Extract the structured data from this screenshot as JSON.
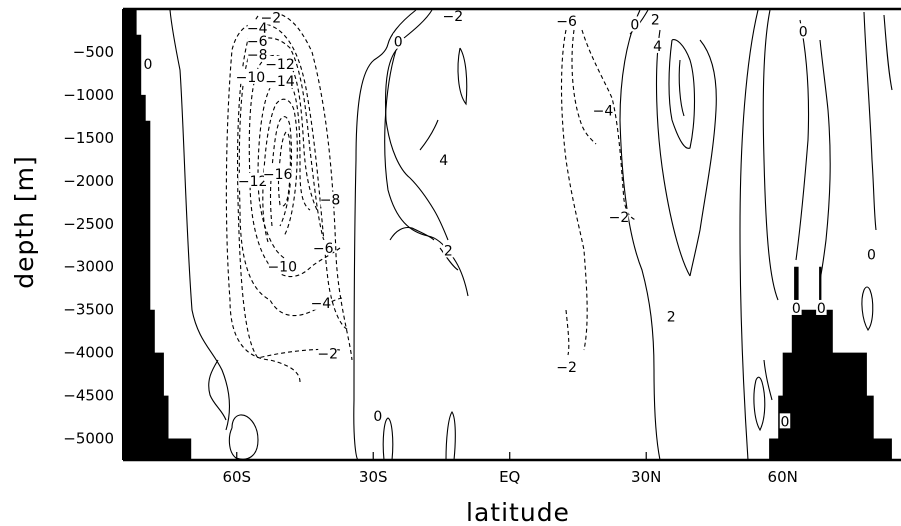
{
  "chart_data": {
    "type": "contour",
    "xlabel": "latitude",
    "ylabel": "depth [m]",
    "x_ticks": [
      "60S",
      "30S",
      "EQ",
      "30N",
      "60N"
    ],
    "x_tick_values": [
      -60,
      -30,
      0,
      30,
      60
    ],
    "xlim": [
      -85,
      86
    ],
    "y_ticks": [
      -500,
      -1000,
      -1500,
      -2000,
      -2500,
      -3000,
      -3500,
      -4000,
      -4500,
      -5000
    ],
    "ylim": [
      -5250,
      0
    ],
    "grid": false,
    "contour_levels": [
      -16,
      -14,
      -12,
      -10,
      -8,
      -6,
      -4,
      -2,
      0,
      2,
      4
    ],
    "negative_style": "dashed",
    "positive_style": "solid",
    "contour_labels": [
      {
        "text": "-2",
        "lat": -52.5,
        "depth": -100
      },
      {
        "text": "-4",
        "lat": -55.5,
        "depth": -220
      },
      {
        "text": "-6",
        "lat": -55.5,
        "depth": -370
      },
      {
        "text": "-8",
        "lat": -55.5,
        "depth": -530
      },
      {
        "text": "-12",
        "lat": -50.5,
        "depth": -640
      },
      {
        "text": "-10",
        "lat": -57.0,
        "depth": -790
      },
      {
        "text": "-14",
        "lat": -50.5,
        "depth": -840
      },
      {
        "text": "-12",
        "lat": -56.5,
        "depth": -2000
      },
      {
        "text": "-16",
        "lat": -51.0,
        "depth": -1920
      },
      {
        "text": "-8",
        "lat": -39.5,
        "depth": -2220
      },
      {
        "text": "-6",
        "lat": -41.0,
        "depth": -2780
      },
      {
        "text": "-10",
        "lat": -50.0,
        "depth": -3000
      },
      {
        "text": "-4",
        "lat": -41.5,
        "depth": -3420
      },
      {
        "text": "-2",
        "lat": -40.0,
        "depth": -4010
      },
      {
        "text": "0",
        "lat": -79.5,
        "depth": -640
      },
      {
        "text": "0",
        "lat": -24.5,
        "depth": -380
      },
      {
        "text": "-2",
        "lat": -12.5,
        "depth": -80
      },
      {
        "text": "4",
        "lat": -14.5,
        "depth": -1760
      },
      {
        "text": "2",
        "lat": -13.5,
        "depth": -2810
      },
      {
        "text": "0",
        "lat": -29.0,
        "depth": -4740
      },
      {
        "text": "-6",
        "lat": 12.5,
        "depth": -140
      },
      {
        "text": "-4",
        "lat": 20.5,
        "depth": -1180
      },
      {
        "text": "-2",
        "lat": 24.0,
        "depth": -2420
      },
      {
        "text": "-2",
        "lat": 12.5,
        "depth": -4170
      },
      {
        "text": "0",
        "lat": 27.5,
        "depth": -180
      },
      {
        "text": "2",
        "lat": 32.0,
        "depth": -120
      },
      {
        "text": "4",
        "lat": 32.5,
        "depth": -430
      },
      {
        "text": "2",
        "lat": 35.5,
        "depth": -3580
      },
      {
        "text": "0",
        "lat": 60.5,
        "depth": -4800
      },
      {
        "text": "0",
        "lat": 64.5,
        "depth": -260
      },
      {
        "text": "0",
        "lat": 79.5,
        "depth": -2860
      },
      {
        "text": "0",
        "lat": 63.0,
        "depth": -3480
      },
      {
        "text": "0",
        "lat": 68.5,
        "depth": -3480
      }
    ],
    "land_mask": {
      "color": "#000000",
      "south": [
        [
          -85,
          0
        ],
        [
          -82,
          0
        ],
        [
          -82,
          -300
        ],
        [
          -81,
          -300
        ],
        [
          -81,
          -1000
        ],
        [
          -80,
          -1000
        ],
        [
          -80,
          -1300
        ],
        [
          -79,
          -1300
        ],
        [
          -79,
          -3500
        ],
        [
          -78,
          -3500
        ],
        [
          -78,
          -4000
        ],
        [
          -76,
          -4000
        ],
        [
          -76,
          -4500
        ],
        [
          -75,
          -4500
        ],
        [
          -75,
          -5000
        ],
        [
          -70,
          -5000
        ],
        [
          -70,
          -5250
        ],
        [
          -85,
          -5250
        ]
      ],
      "north": [
        [
          57,
          -5250
        ],
        [
          57,
          -5000
        ],
        [
          59,
          -5000
        ],
        [
          59,
          -4500
        ],
        [
          60,
          -4500
        ],
        [
          60,
          -4000
        ],
        [
          62,
          -4000
        ],
        [
          62,
          -3500
        ],
        [
          62.5,
          -3500
        ],
        [
          62.5,
          -3000
        ],
        [
          63.5,
          -3000
        ],
        [
          63.5,
          -3500
        ],
        [
          68,
          -3500
        ],
        [
          68,
          -3000
        ],
        [
          68.5,
          -3000
        ],
        [
          68.5,
          -3500
        ],
        [
          71,
          -3500
        ],
        [
          71,
          -4000
        ],
        [
          78.5,
          -4000
        ],
        [
          78.5,
          -4500
        ],
        [
          80,
          -4500
        ],
        [
          80,
          -5000
        ],
        [
          84,
          -5000
        ],
        [
          84,
          -5250
        ]
      ]
    }
  }
}
